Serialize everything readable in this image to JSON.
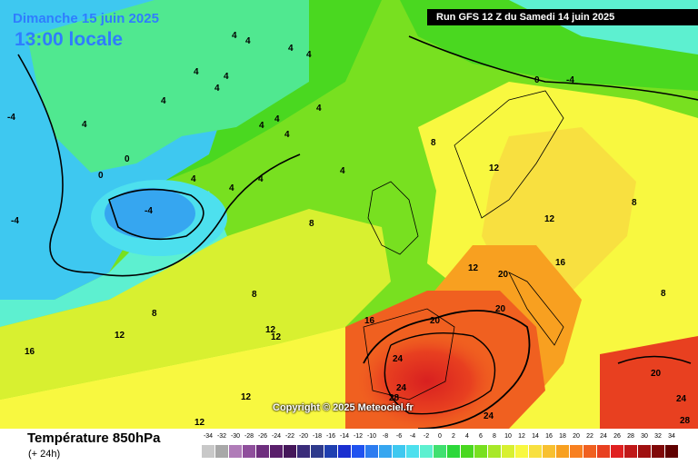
{
  "header": {
    "date_line": "Dimanche 15 juin 2025",
    "time_line": "13:00 locale",
    "run_banner": "Run GFS 12 Z du Samedi 14 juin 2025"
  },
  "footer": {
    "title": "Température 850hPa",
    "subtitle": "(+ 24h)",
    "copyright": "Copyright © 2025 Meteociel.fr"
  },
  "legend": {
    "ticks": [
      "-34",
      "-32",
      "-30",
      "-28",
      "-26",
      "-24",
      "-22",
      "-20",
      "-18",
      "-16",
      "-14",
      "-12",
      "-10",
      "-8",
      "-6",
      "-4",
      "-2",
      "0",
      "2",
      "4",
      "6",
      "8",
      "10",
      "12",
      "14",
      "16",
      "18",
      "20",
      "22",
      "24",
      "26",
      "28",
      "30",
      "32",
      "34"
    ],
    "colors": [
      "#c8c8c8",
      "#a8a8a8",
      "#b07cb8",
      "#8f4f9c",
      "#6e2e7e",
      "#5a1f6b",
      "#45175a",
      "#3a2c7a",
      "#2e3a8c",
      "#1f3fb0",
      "#1a2fd0",
      "#1f52f0",
      "#2c7cf0",
      "#36a6f0",
      "#3ec8f0",
      "#4de0ee",
      "#5df0d0",
      "#40e070",
      "#2cd83a",
      "#4ad820",
      "#78e020",
      "#a8e828",
      "#d8f030",
      "#f8f840",
      "#f8e040",
      "#f8c030",
      "#f8a020",
      "#f88020",
      "#f06020",
      "#e84020",
      "#e02020",
      "#c01818",
      "#a01010",
      "#800808",
      "#600000"
    ],
    "palette_note": "temperature scale in °C"
  },
  "labels": [
    {
      "text": "4"
    },
    {
      "text": "4"
    },
    {
      "text": "4"
    },
    {
      "text": "4"
    },
    {
      "text": "4"
    },
    {
      "text": "4"
    },
    {
      "text": "4"
    },
    {
      "text": "4"
    },
    {
      "text": "4"
    },
    {
      "text": "4"
    },
    {
      "text": "4"
    },
    {
      "text": "4"
    },
    {
      "text": "4"
    },
    {
      "text": "4"
    },
    {
      "text": "-4"
    },
    {
      "text": "4"
    },
    {
      "text": "0"
    },
    {
      "text": "0"
    },
    {
      "text": "-4"
    },
    {
      "text": "-4"
    },
    {
      "text": "4"
    },
    {
      "text": "4"
    },
    {
      "text": "8"
    },
    {
      "text": "8"
    },
    {
      "text": "8"
    },
    {
      "text": "8"
    },
    {
      "text": "12"
    },
    {
      "text": "12"
    },
    {
      "text": "12"
    },
    {
      "text": "12"
    },
    {
      "text": "12"
    },
    {
      "text": "16"
    },
    {
      "text": "16"
    },
    {
      "text": "20"
    },
    {
      "text": "20"
    },
    {
      "text": "20"
    },
    {
      "text": "24"
    },
    {
      "text": "24"
    },
    {
      "text": "28"
    },
    {
      "text": "24"
    },
    {
      "text": "20"
    },
    {
      "text": "24"
    },
    {
      "text": "28"
    },
    {
      "text": "12"
    },
    {
      "text": "12"
    },
    {
      "text": "16"
    },
    {
      "text": "12"
    },
    {
      "text": "8"
    },
    {
      "text": "8"
    },
    {
      "text": "0"
    },
    {
      "text": "-4"
    }
  ]
}
